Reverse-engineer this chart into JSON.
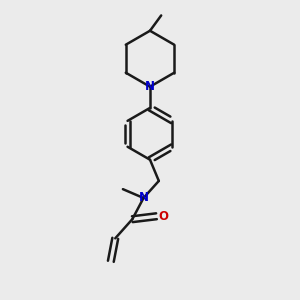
{
  "background_color": "#ebebeb",
  "bond_color": "#1a1a1a",
  "nitrogen_color": "#0000cc",
  "oxygen_color": "#cc0000",
  "line_width": 1.8,
  "figsize": [
    3.0,
    3.0
  ],
  "dpi": 100,
  "xlim": [
    0,
    10
  ],
  "ylim": [
    0,
    10
  ]
}
